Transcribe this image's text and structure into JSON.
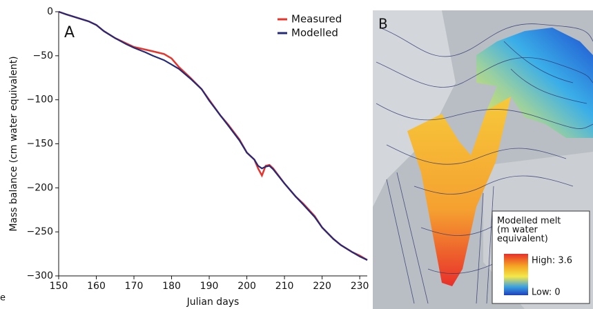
{
  "chart_data": {
    "type": "line",
    "panel_label": "A",
    "x_label": "Julian days",
    "y_label": "Mass balance (cm water equivalent)",
    "x": [
      150,
      152,
      155,
      158,
      160,
      162,
      165,
      168,
      170,
      173,
      175,
      178,
      180,
      182,
      185,
      188,
      190,
      193,
      195,
      198,
      200,
      202,
      203,
      204,
      205,
      206,
      207,
      210,
      213,
      215,
      218,
      220,
      223,
      225,
      228,
      230,
      232
    ],
    "series": [
      {
        "name": "Measured",
        "color": "#e8322a",
        "values": [
          0,
          -3,
          -7,
          -11,
          -15,
          -22,
          -30,
          -36,
          -40,
          -43,
          -45,
          -48,
          -53,
          -63,
          -75,
          -88,
          -100,
          -118,
          -128,
          -145,
          -160,
          -168,
          -178,
          -186,
          -175,
          -174,
          -178,
          -195,
          -210,
          -218,
          -232,
          -245,
          -258,
          -265,
          -273,
          -277,
          -282
        ]
      },
      {
        "name": "Modelled",
        "color": "#252a78",
        "values": [
          0,
          -3,
          -7,
          -11,
          -15,
          -22,
          -30,
          -37,
          -41,
          -46,
          -50,
          -55,
          -60,
          -65,
          -76,
          -88,
          -101,
          -118,
          -129,
          -146,
          -160,
          -168,
          -175,
          -178,
          -176,
          -175,
          -179,
          -195,
          -210,
          -219,
          -233,
          -245,
          -258,
          -265,
          -273,
          -278,
          -282
        ]
      }
    ],
    "xlim": [
      150,
      232
    ],
    "xticks": [
      150,
      160,
      170,
      180,
      190,
      200,
      210,
      220,
      230
    ],
    "ylim": [
      -300,
      0
    ],
    "yticks": [
      0,
      {
        "value": -50,
        "label": "−50"
      },
      {
        "value": -100,
        "label": "−100"
      },
      {
        "value": -150,
        "label": "−150"
      },
      {
        "value": -200,
        "label": "−200"
      },
      {
        "value": -250,
        "label": "−250"
      },
      {
        "value": -300,
        "label": "−300"
      }
    ],
    "legend": "upper right",
    "grid": false
  },
  "map_panel": {
    "panel_label": "B",
    "legend_title": "Modelled melt (m water equivalent)",
    "high_label": "High: 3.6",
    "low_label": "Low: 0"
  },
  "caption_fragment": "e"
}
